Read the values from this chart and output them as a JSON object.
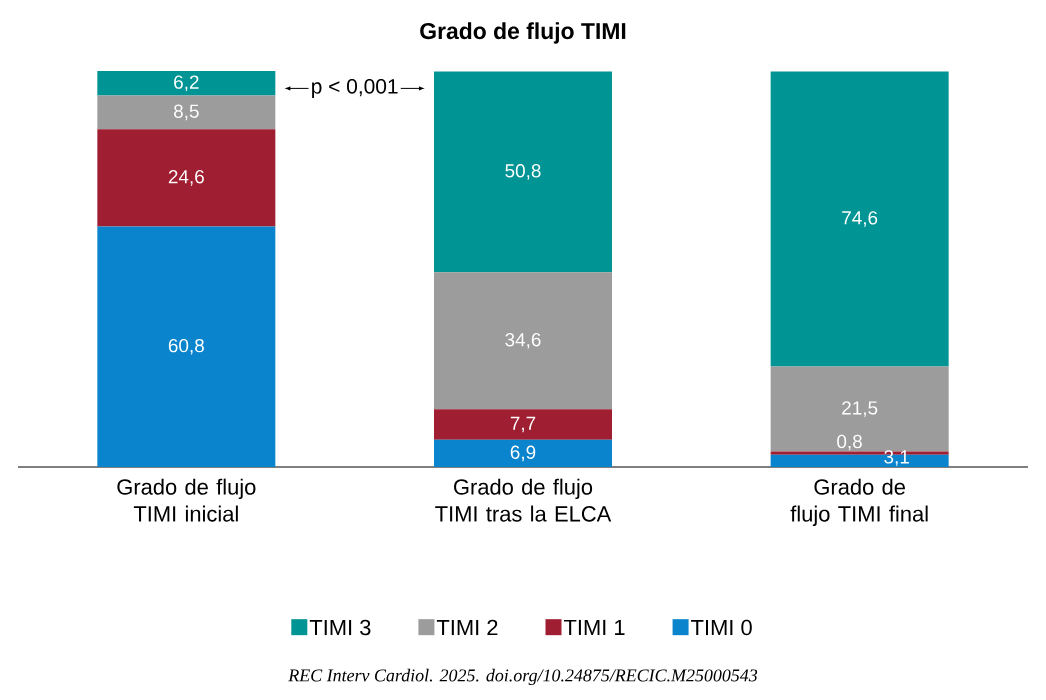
{
  "chart_data": {
    "type": "bar",
    "title": "Grado de flujo TIMI",
    "stacked": true,
    "legend": "bottom",
    "categories": [
      "Grado de flujo TIMI inicial",
      "Grado de flujo TIMI tras la ELCA",
      "Grado de flujo TIMI final"
    ],
    "series": [
      {
        "name": "TIMI 0",
        "color": "#0a84cc",
        "values": [
          60.8,
          6.9,
          3.1
        ],
        "value_labels": [
          "60,8",
          "6,9",
          "3,1"
        ]
      },
      {
        "name": "TIMI 1",
        "color": "#a01e32",
        "values": [
          24.6,
          7.7,
          0.8
        ],
        "value_labels": [
          "24,6",
          "7,7",
          "0,8"
        ]
      },
      {
        "name": "TIMI 2",
        "color": "#9d9c9c",
        "values": [
          8.5,
          34.6,
          21.5
        ],
        "value_labels": [
          "8,5",
          "34,6",
          "21,5"
        ]
      },
      {
        "name": "TIMI 3",
        "color": "#009495",
        "values": [
          6.2,
          50.8,
          74.6
        ],
        "value_labels": [
          "6,2",
          "50,8",
          "74,6"
        ]
      }
    ],
    "annotations": [
      "p < 0,001",
      "REC Interv Cardiol. 2025. doi.org/10.24875/RECIC.M25000543"
    ]
  }
}
